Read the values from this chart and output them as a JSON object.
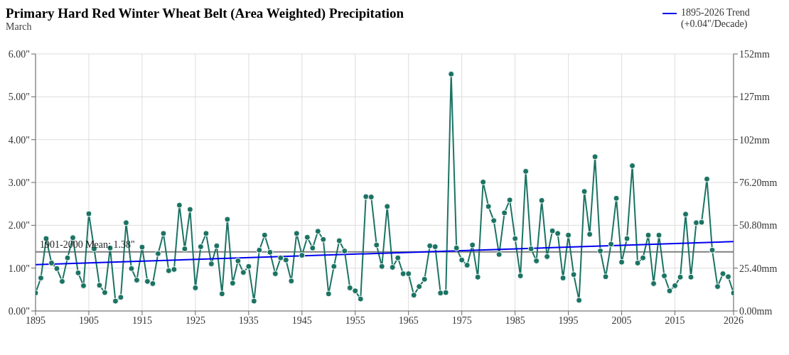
{
  "chart_data": {
    "type": "line",
    "title": "Primary Hard Red Winter Wheat Belt (Area Weighted) Precipitation",
    "subtitle": "March",
    "x": [
      1895,
      1896,
      1897,
      1898,
      1899,
      1900,
      1901,
      1902,
      1903,
      1904,
      1905,
      1906,
      1907,
      1908,
      1909,
      1910,
      1911,
      1912,
      1913,
      1914,
      1915,
      1916,
      1917,
      1918,
      1919,
      1920,
      1921,
      1922,
      1923,
      1924,
      1925,
      1926,
      1927,
      1928,
      1929,
      1930,
      1931,
      1932,
      1933,
      1934,
      1935,
      1936,
      1937,
      1938,
      1939,
      1940,
      1941,
      1942,
      1943,
      1944,
      1945,
      1946,
      1947,
      1948,
      1949,
      1950,
      1951,
      1952,
      1953,
      1954,
      1955,
      1956,
      1957,
      1958,
      1959,
      1960,
      1961,
      1962,
      1963,
      1964,
      1965,
      1966,
      1967,
      1968,
      1969,
      1970,
      1971,
      1972,
      1973,
      1974,
      1975,
      1976,
      1977,
      1978,
      1979,
      1980,
      1981,
      1982,
      1983,
      1984,
      1985,
      1986,
      1987,
      1988,
      1989,
      1990,
      1991,
      1992,
      1993,
      1994,
      1995,
      1996,
      1997,
      1998,
      1999,
      2000,
      2001,
      2002,
      2003,
      2004,
      2005,
      2006,
      2007,
      2008,
      2009,
      2010,
      2011,
      2012,
      2013,
      2014,
      2015,
      2016,
      2017,
      2018,
      2019,
      2020,
      2021,
      2022,
      2023,
      2024,
      2025,
      2026
    ],
    "series": [
      {
        "color": "#1b7363",
        "marker": "circle",
        "values": [
          0.42,
          0.77,
          1.69,
          1.12,
          0.99,
          0.69,
          1.24,
          1.71,
          0.89,
          0.59,
          2.27,
          1.45,
          0.6,
          0.43,
          1.47,
          0.23,
          0.32,
          2.06,
          0.99,
          0.72,
          1.49,
          0.69,
          0.64,
          1.34,
          1.81,
          0.94,
          0.97,
          2.47,
          1.45,
          2.37,
          0.54,
          1.5,
          1.81,
          1.1,
          1.52,
          0.4,
          2.14,
          0.65,
          1.17,
          0.9,
          1.04,
          0.23,
          1.42,
          1.77,
          1.37,
          0.87,
          1.24,
          1.19,
          0.7,
          1.81,
          1.3,
          1.72,
          1.47,
          1.86,
          1.67,
          0.4,
          1.04,
          1.64,
          1.4,
          0.54,
          0.47,
          0.28,
          2.67,
          2.66,
          1.54,
          1.04,
          2.44,
          1.02,
          1.24,
          0.87,
          0.87,
          0.37,
          0.57,
          0.74,
          1.52,
          1.5,
          0.42,
          0.43,
          5.53,
          1.47,
          1.19,
          1.07,
          1.54,
          0.79,
          3.01,
          2.44,
          2.11,
          1.32,
          2.29,
          2.59,
          1.69,
          0.82,
          3.26,
          1.45,
          1.17,
          2.58,
          1.27,
          1.87,
          1.81,
          0.77,
          1.77,
          0.85,
          0.25,
          2.79,
          1.79,
          3.6,
          1.4,
          0.8,
          1.56,
          2.63,
          1.14,
          1.69,
          3.39,
          1.12,
          1.24,
          1.77,
          0.64,
          1.77,
          0.82,
          0.47,
          0.59,
          0.79,
          2.26,
          0.79,
          2.06,
          2.07,
          3.08,
          1.42,
          0.57,
          0.87,
          0.8,
          0.42
        ]
      },
      {
        "name": "1895-2026 Trend (+0.04\"/Decade)",
        "color": "#0000ee",
        "marker": "none",
        "x": [
          1895,
          2026
        ],
        "values": [
          1.08,
          1.62
        ]
      }
    ],
    "xlim": [
      1895,
      2026
    ],
    "xticks": [
      1895,
      1905,
      1915,
      1925,
      1935,
      1945,
      1955,
      1965,
      1975,
      1985,
      1995,
      2005,
      2015,
      2026
    ],
    "ylim": [
      0,
      6
    ],
    "yticks": [
      {
        "value": 0,
        "label": "0.00\""
      },
      {
        "value": 1,
        "label": "1.00\""
      },
      {
        "value": 2,
        "label": "2.00\""
      },
      {
        "value": 3,
        "label": "3.00\""
      },
      {
        "value": 4,
        "label": "4.00\""
      },
      {
        "value": 5,
        "label": "5.00\""
      },
      {
        "value": 6,
        "label": "6.00\""
      }
    ],
    "y2lim": [
      0,
      152.4
    ],
    "y2ticks": [
      {
        "value": 0,
        "label": "0.00mm"
      },
      {
        "value": 25.4,
        "label": "25.40mm"
      },
      {
        "value": 50.8,
        "label": "50.80mm"
      },
      {
        "value": 76.2,
        "label": "76.20mm"
      },
      {
        "value": 101.6,
        "label": "102mm"
      },
      {
        "value": 127,
        "label": "127mm"
      },
      {
        "value": 152.4,
        "label": "152mm"
      }
    ],
    "ref_lines": [
      {
        "axis": "y",
        "value": 1.38,
        "label": "1901-2000 Mean: 1.38\"",
        "color": "#808080"
      }
    ],
    "grid": true,
    "legend": "top right"
  }
}
